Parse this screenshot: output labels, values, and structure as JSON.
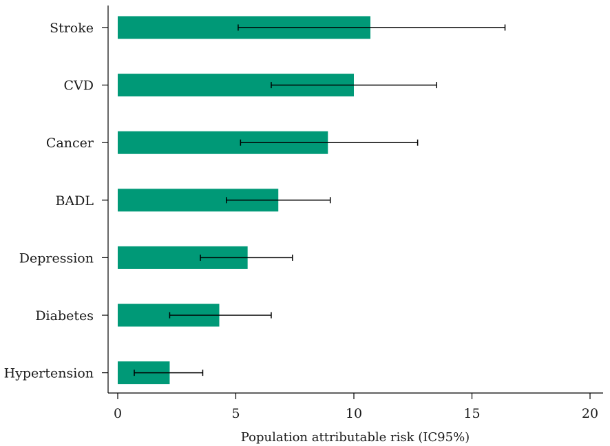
{
  "chart_data": {
    "type": "bar",
    "orientation": "horizontal",
    "categories": [
      "Stroke",
      "CVD",
      "Cancer",
      "BADL",
      "Depression",
      "Diabetes",
      "Hypertension"
    ],
    "values": [
      10.7,
      10.0,
      8.9,
      6.8,
      5.5,
      4.3,
      2.2
    ],
    "error_low": [
      5.1,
      6.5,
      5.2,
      4.6,
      3.5,
      2.2,
      0.7
    ],
    "error_high": [
      16.4,
      13.5,
      12.7,
      9.0,
      7.4,
      6.5,
      3.6
    ],
    "xlabel": "Population attributable risk (IC95%)",
    "ylabel": "",
    "xlim": [
      0,
      20
    ],
    "xticks": [
      "0",
      "5",
      "10",
      "15",
      "20"
    ],
    "grid": false,
    "bar_color": "#009977"
  }
}
